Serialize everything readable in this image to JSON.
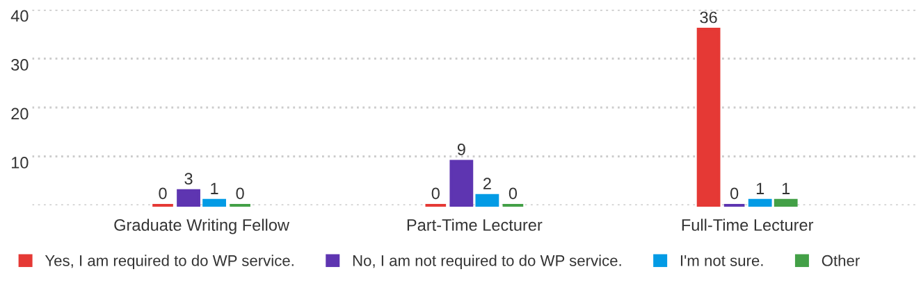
{
  "chart_data": {
    "type": "bar",
    "categories": [
      "Graduate Writing Fellow",
      "Part-Time Lecturer",
      "Full-Time Lecturer"
    ],
    "series": [
      {
        "name": "Yes, I am required to do WP service.",
        "color": "#e53935",
        "values": [
          0,
          0,
          36
        ]
      },
      {
        "name": "No, I am not required to do WP service.",
        "color": "#5e35b1",
        "values": [
          3,
          9,
          0
        ]
      },
      {
        "name": "I'm not sure.",
        "color": "#039be5",
        "values": [
          1,
          2,
          1
        ]
      },
      {
        "name": "Other",
        "color": "#43a047",
        "values": [
          0,
          0,
          1
        ]
      }
    ],
    "ylim": [
      0,
      40
    ],
    "yticks": [
      10,
      20,
      30,
      40
    ],
    "grid": "y",
    "data_labels": true,
    "legend": "bottom"
  }
}
